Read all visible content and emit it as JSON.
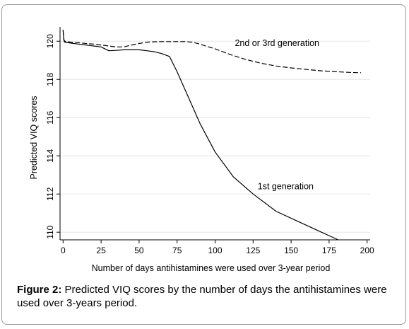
{
  "chart_data": {
    "type": "line",
    "xlabel": "Number of days antihistamines were used over 3-year period",
    "ylabel": "Predicted VIQ scores",
    "xlim": [
      -2,
      202
    ],
    "ylim": [
      109.6,
      120.75
    ],
    "x_ticks": [
      0,
      25,
      50,
      75,
      100,
      125,
      150,
      175,
      200
    ],
    "y_ticks": [
      110,
      112,
      114,
      116,
      118,
      120
    ],
    "grid": "horizontal",
    "series": [
      {
        "name": "2nd or 3rd generation",
        "style": "dashed",
        "points": [
          [
            0,
            120.55
          ],
          [
            0.5,
            120.1
          ],
          [
            1,
            120.0
          ],
          [
            5,
            119.95
          ],
          [
            10,
            119.92
          ],
          [
            15,
            119.88
          ],
          [
            20,
            119.85
          ],
          [
            25,
            119.8
          ],
          [
            30,
            119.75
          ],
          [
            35,
            119.7
          ],
          [
            40,
            119.7
          ],
          [
            45,
            119.8
          ],
          [
            50,
            119.88
          ],
          [
            55,
            119.95
          ],
          [
            60,
            119.97
          ],
          [
            65,
            119.98
          ],
          [
            70,
            119.98
          ],
          [
            75,
            119.98
          ],
          [
            80,
            119.98
          ],
          [
            85,
            119.95
          ],
          [
            90,
            119.85
          ],
          [
            95,
            119.72
          ],
          [
            100,
            119.6
          ],
          [
            110,
            119.3
          ],
          [
            120,
            119.05
          ],
          [
            130,
            118.85
          ],
          [
            140,
            118.7
          ],
          [
            150,
            118.6
          ],
          [
            160,
            118.52
          ],
          [
            170,
            118.45
          ],
          [
            180,
            118.4
          ],
          [
            190,
            118.36
          ],
          [
            196,
            118.35
          ]
        ]
      },
      {
        "name": "1st generation",
        "style": "solid",
        "points": [
          [
            0,
            120.6
          ],
          [
            0.5,
            120.05
          ],
          [
            1,
            119.95
          ],
          [
            5,
            119.9
          ],
          [
            10,
            119.85
          ],
          [
            15,
            119.8
          ],
          [
            20,
            119.75
          ],
          [
            25,
            119.7
          ],
          [
            30,
            119.5
          ],
          [
            35,
            119.52
          ],
          [
            40,
            119.55
          ],
          [
            45,
            119.55
          ],
          [
            50,
            119.55
          ],
          [
            55,
            119.5
          ],
          [
            60,
            119.45
          ],
          [
            65,
            119.35
          ],
          [
            70,
            119.2
          ],
          [
            75,
            118.4
          ],
          [
            80,
            117.5
          ],
          [
            90,
            115.7
          ],
          [
            100,
            114.2
          ],
          [
            112,
            112.9
          ],
          [
            125,
            112.0
          ],
          [
            140,
            111.1
          ],
          [
            155,
            110.55
          ],
          [
            170,
            110.0
          ],
          [
            181,
            109.6
          ]
        ]
      }
    ],
    "annotations": [
      {
        "text": "2nd or 3rd generation",
        "x": 113,
        "y": 119.75
      },
      {
        "text": "1st generation",
        "x": 128,
        "y": 112.25
      }
    ]
  },
  "caption": {
    "label": "Figure 2:",
    "text": " Predicted VIQ scores by the number of days the antihistamines were used over 3-years period."
  }
}
